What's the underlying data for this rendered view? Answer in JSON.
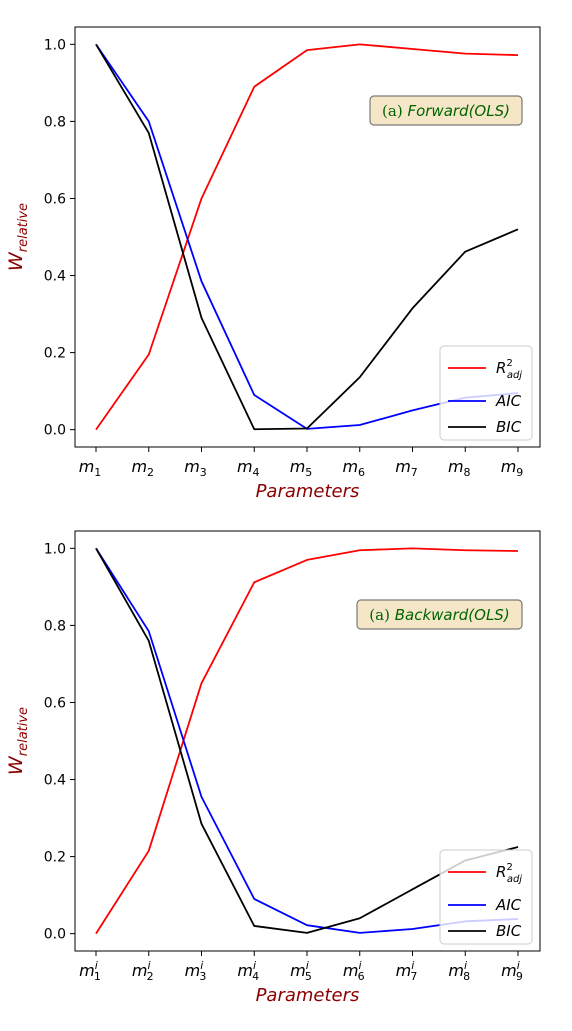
{
  "colors": {
    "r2adj": "#ff0000",
    "aic": "#0000ff",
    "bic": "#000000",
    "axis_label": "#8b0000",
    "annotation_text": "#006400",
    "annotation_box_fill": "#f5e6c8",
    "annotation_box_edge": "#7a7a7a"
  },
  "chart_data": [
    {
      "type": "line",
      "title": "",
      "annotation": {
        "prefix": "(a) ",
        "method": "Forward(OLS)"
      },
      "xlabel": "Parameters",
      "ylabel": {
        "base": "W",
        "sub": "relative"
      },
      "x_ticks": [
        {
          "base": "m",
          "sub": "1"
        },
        {
          "base": "m",
          "sub": "2"
        },
        {
          "base": "m",
          "sub": "3"
        },
        {
          "base": "m",
          "sub": "4"
        },
        {
          "base": "m",
          "sub": "5"
        },
        {
          "base": "m",
          "sub": "6"
        },
        {
          "base": "m",
          "sub": "7"
        },
        {
          "base": "m",
          "sub": "8"
        },
        {
          "base": "m",
          "sub": "9"
        }
      ],
      "y_ticks": [
        "0.0",
        "0.2",
        "0.4",
        "0.6",
        "0.8",
        "1.0"
      ],
      "ylim": [
        -0.045,
        1.045
      ],
      "legend_position": "lower-right",
      "series": [
        {
          "name": "R_adj^2",
          "legend": {
            "base": "R",
            "sup": "2",
            "sub": "adj"
          },
          "color": "#ff0000",
          "values": [
            0.0,
            0.195,
            0.6,
            0.89,
            0.985,
            1.0,
            0.988,
            0.976,
            0.972
          ]
        },
        {
          "name": "AIC",
          "legend": {
            "base": "AIC"
          },
          "color": "#0000ff",
          "values": [
            1.0,
            0.8,
            0.385,
            0.09,
            0.002,
            0.012,
            0.05,
            0.083,
            0.095
          ]
        },
        {
          "name": "BIC",
          "legend": {
            "base": "BIC"
          },
          "color": "#000000",
          "values": [
            1.0,
            0.77,
            0.29,
            0.001,
            0.003,
            0.136,
            0.315,
            0.462,
            0.52
          ]
        }
      ]
    },
    {
      "type": "line",
      "title": "",
      "annotation": {
        "prefix": "(a) ",
        "method": "Backward(OLS)"
      },
      "xlabel": "Parameters",
      "ylabel": {
        "base": "W",
        "sub": "relative"
      },
      "x_ticks": [
        {
          "base": "m",
          "sub": "1",
          "sup": "i"
        },
        {
          "base": "m",
          "sub": "2",
          "sup": "i"
        },
        {
          "base": "m",
          "sub": "3",
          "sup": "i"
        },
        {
          "base": "m",
          "sub": "4",
          "sup": "i"
        },
        {
          "base": "m",
          "sub": "5",
          "sup": "i"
        },
        {
          "base": "m",
          "sub": "6",
          "sup": "i"
        },
        {
          "base": "m",
          "sub": "7",
          "sup": "i"
        },
        {
          "base": "m",
          "sub": "8",
          "sup": "i"
        },
        {
          "base": "m",
          "sub": "9",
          "sup": "i"
        }
      ],
      "y_ticks": [
        "0.0",
        "0.2",
        "0.4",
        "0.6",
        "0.8",
        "1.0"
      ],
      "ylim": [
        -0.045,
        1.045
      ],
      "legend_position": "lower-right",
      "series": [
        {
          "name": "R_adj^2",
          "legend": {
            "base": "R",
            "sup": "2",
            "sub": "adj"
          },
          "color": "#ff0000",
          "values": [
            0.0,
            0.215,
            0.65,
            0.912,
            0.97,
            0.995,
            1.0,
            0.995,
            0.993
          ]
        },
        {
          "name": "AIC",
          "legend": {
            "base": "AIC"
          },
          "color": "#0000ff",
          "values": [
            1.0,
            0.785,
            0.355,
            0.09,
            0.022,
            0.002,
            0.012,
            0.032,
            0.038
          ]
        },
        {
          "name": "BIC",
          "legend": {
            "base": "BIC"
          },
          "color": "#000000",
          "values": [
            1.0,
            0.76,
            0.285,
            0.02,
            0.002,
            0.04,
            0.115,
            0.19,
            0.225
          ]
        }
      ]
    }
  ]
}
